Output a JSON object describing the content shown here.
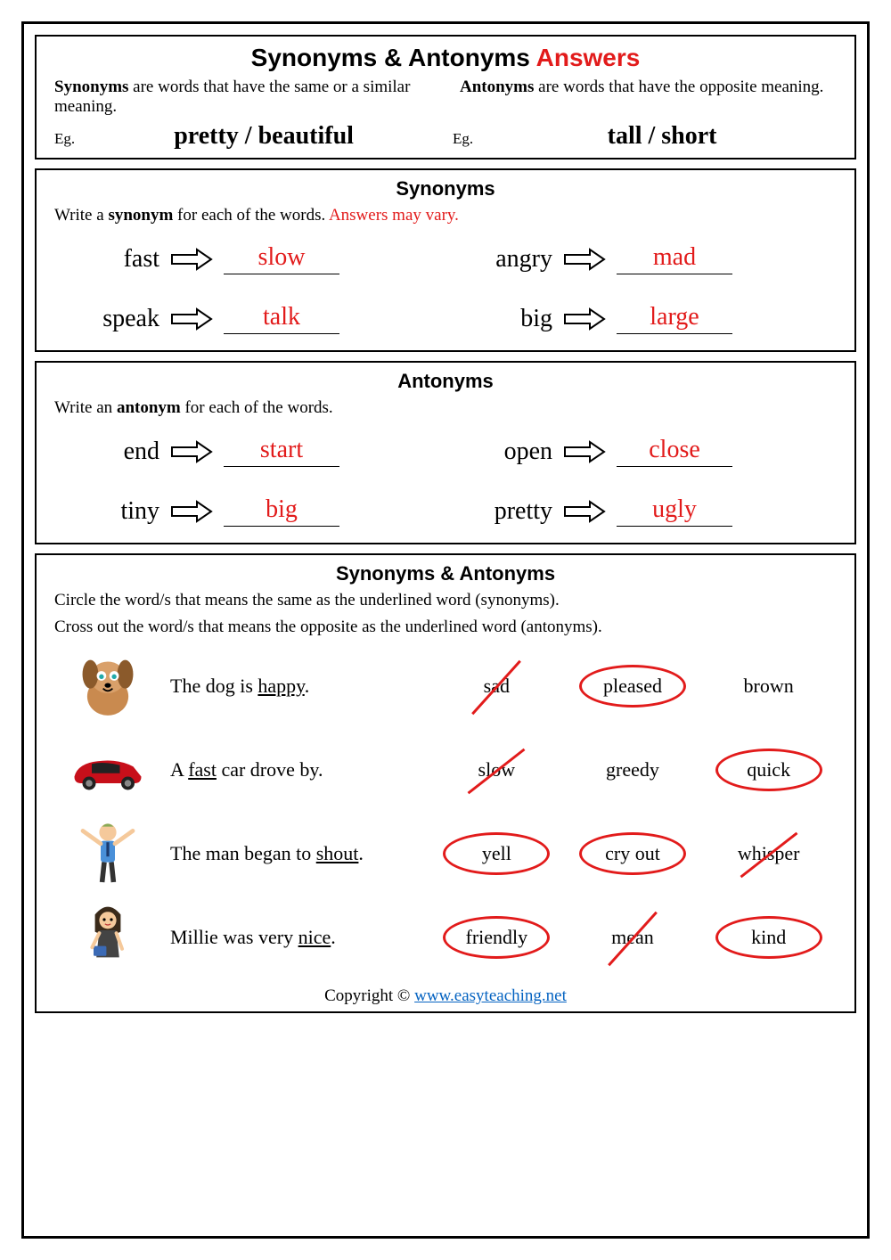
{
  "header": {
    "title_prefix": "Synonyms & Antonyms ",
    "title_answers": "Answers",
    "syn_def_bold": "Synonyms",
    "syn_def_rest": " are words that have the same or a similar meaning.",
    "ant_def_bold": "Antonyms",
    "ant_def_rest": " are words that have the opposite meaning.",
    "eg_label": "Eg.",
    "eg_syn": "pretty / beautiful",
    "eg_ant": "tall / short"
  },
  "synonyms": {
    "title": "Synonyms",
    "instr_pre": "Write a ",
    "instr_bold": "synonym",
    "instr_post": " for each of the words.  ",
    "instr_vary": "Answers may vary.",
    "pairs": [
      {
        "src": "fast",
        "ans": "slow"
      },
      {
        "src": "angry",
        "ans": "mad"
      },
      {
        "src": "speak",
        "ans": "talk"
      },
      {
        "src": "big",
        "ans": "large"
      }
    ]
  },
  "antonyms": {
    "title": "Antonyms",
    "instr_pre": "Write an ",
    "instr_bold": "antonym",
    "instr_post": " for each of the words.",
    "pairs": [
      {
        "src": "end",
        "ans": "start"
      },
      {
        "src": "open",
        "ans": "close"
      },
      {
        "src": "tiny",
        "ans": "big"
      },
      {
        "src": "pretty",
        "ans": "ugly"
      }
    ]
  },
  "mixed": {
    "title": "Synonyms & Antonyms",
    "instr1": "Circle the word/s that means the same as the underlined word (synonyms).",
    "instr2": "Cross out the word/s that means the opposite as the underlined word (antonyms).",
    "rows": [
      {
        "sentence_pre": "The dog is ",
        "underlined": "happy",
        "sentence_post": ".",
        "opts": [
          {
            "text": "sad",
            "mark": "crossed-steep"
          },
          {
            "text": "pleased",
            "mark": "circled"
          },
          {
            "text": "brown",
            "mark": ""
          }
        ]
      },
      {
        "sentence_pre": "A ",
        "underlined": "fast",
        "sentence_post": " car drove by.",
        "opts": [
          {
            "text": "slow",
            "mark": "crossed"
          },
          {
            "text": "greedy",
            "mark": ""
          },
          {
            "text": "quick",
            "mark": "circled"
          }
        ]
      },
      {
        "sentence_pre": "The man began to ",
        "underlined": "shout",
        "sentence_post": ".",
        "opts": [
          {
            "text": "yell",
            "mark": "circled"
          },
          {
            "text": "cry out",
            "mark": "circled"
          },
          {
            "text": "whisper",
            "mark": "crossed"
          }
        ]
      },
      {
        "sentence_pre": "Millie was very ",
        "underlined": "nice",
        "sentence_post": ".",
        "opts": [
          {
            "text": "friendly",
            "mark": "circled"
          },
          {
            "text": "mean",
            "mark": "crossed-steep"
          },
          {
            "text": "kind",
            "mark": "circled"
          }
        ]
      }
    ]
  },
  "footer": {
    "copyright": "Copyright © ",
    "link_text": "www.easyteaching.net"
  },
  "colors": {
    "answer": "#e21b1b",
    "link": "#0563c1",
    "text": "#000000"
  }
}
